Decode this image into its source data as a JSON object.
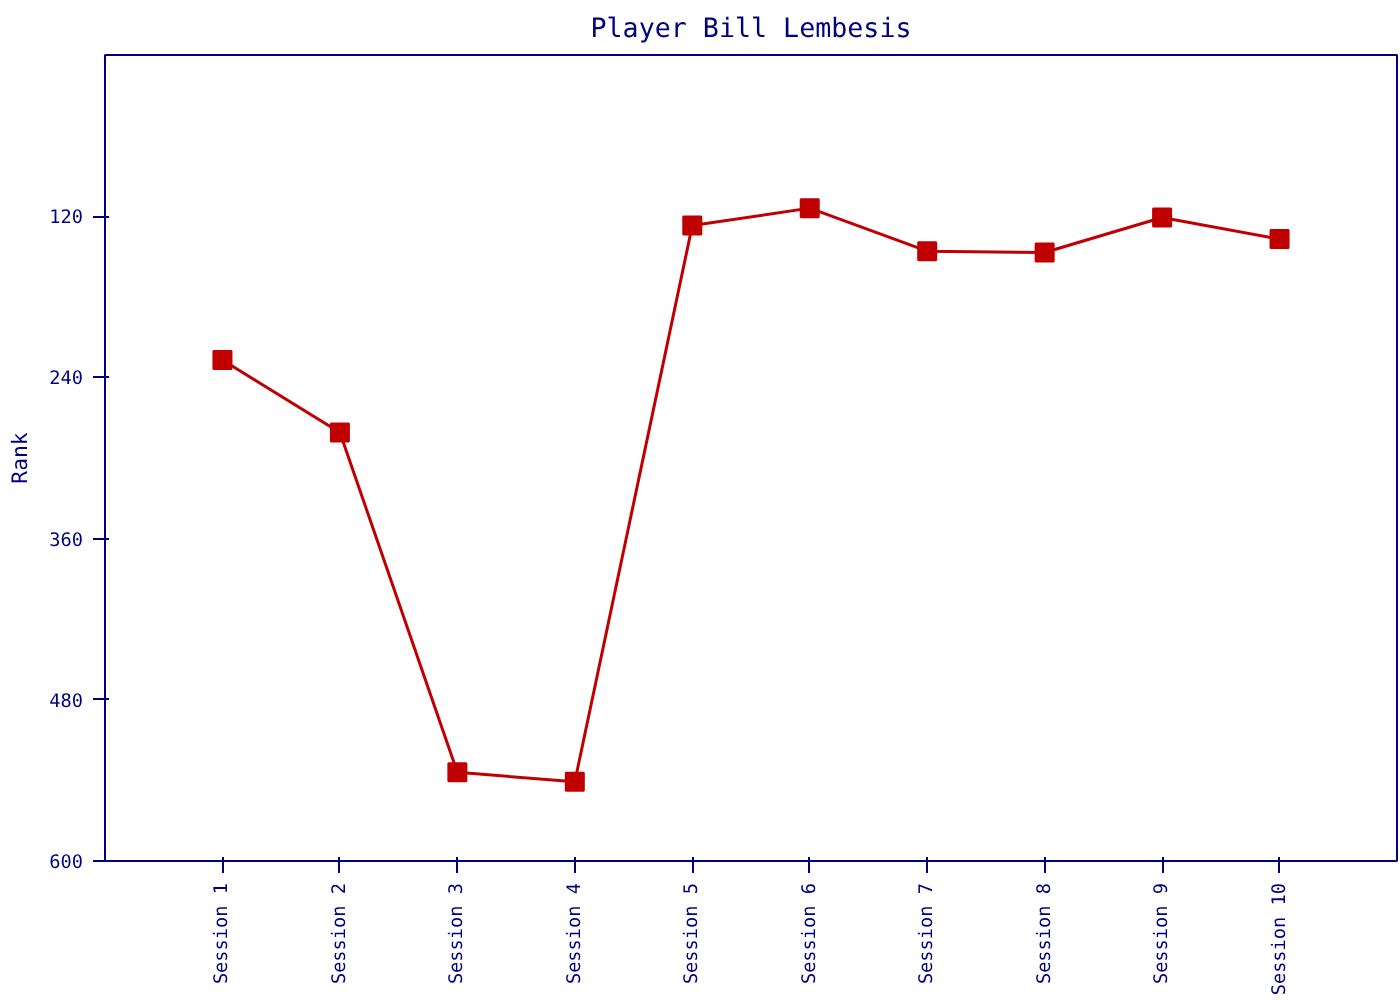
{
  "chart_data": {
    "type": "line",
    "title": "Player Bill Lembesis",
    "ylabel": "Rank",
    "categories": [
      "Session 1",
      "Session 2",
      "Session 3",
      "Session 4",
      "Session 5",
      "Session 6",
      "Session 7",
      "Session 8",
      "Session 9",
      "Session 10"
    ],
    "series": [
      {
        "color": "#c00000",
        "values": [
          227,
          281,
          534,
          541,
          127,
          114,
          146,
          147,
          121,
          137
        ]
      }
    ],
    "ylim": [
      600,
      0
    ],
    "yticks": [
      120,
      240,
      360,
      480,
      600
    ],
    "grid": false,
    "marker": "square",
    "line_style": "solid"
  }
}
